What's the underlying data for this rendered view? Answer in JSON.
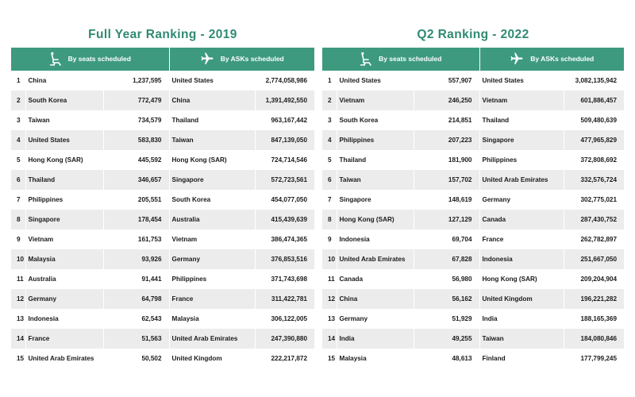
{
  "left": {
    "title": "Full Year Ranking - 2019",
    "header_seats": "By seats scheduled",
    "header_asks": "By ASKs scheduled",
    "rows": [
      {
        "rank": "1",
        "seat_country": "China",
        "seats": "1,237,595",
        "ask_country": "United States",
        "asks": "2,774,058,986"
      },
      {
        "rank": "2",
        "seat_country": "South Korea",
        "seats": "772,479",
        "ask_country": "China",
        "asks": "1,391,492,550"
      },
      {
        "rank": "3",
        "seat_country": "Taiwan",
        "seats": "734,579",
        "ask_country": "Thailand",
        "asks": "963,167,442"
      },
      {
        "rank": "4",
        "seat_country": "United States",
        "seats": "583,830",
        "ask_country": "Taiwan",
        "asks": "847,139,050"
      },
      {
        "rank": "5",
        "seat_country": "Hong Kong (SAR)",
        "seats": "445,592",
        "ask_country": "Hong Kong (SAR)",
        "asks": "724,714,546"
      },
      {
        "rank": "6",
        "seat_country": "Thailand",
        "seats": "346,657",
        "ask_country": "Singapore",
        "asks": "572,723,561"
      },
      {
        "rank": "7",
        "seat_country": "Philippines",
        "seats": "205,551",
        "ask_country": "South Korea",
        "asks": "454,077,050"
      },
      {
        "rank": "8",
        "seat_country": "Singapore",
        "seats": "178,454",
        "ask_country": "Australia",
        "asks": "415,439,639"
      },
      {
        "rank": "9",
        "seat_country": "Vietnam",
        "seats": "161,753",
        "ask_country": "Vietnam",
        "asks": "386,474,365"
      },
      {
        "rank": "10",
        "seat_country": "Malaysia",
        "seats": "93,926",
        "ask_country": "Germany",
        "asks": "376,853,516"
      },
      {
        "rank": "11",
        "seat_country": "Australia",
        "seats": "91,441",
        "ask_country": "Philippines",
        "asks": "371,743,698"
      },
      {
        "rank": "12",
        "seat_country": "Germany",
        "seats": "64,798",
        "ask_country": "France",
        "asks": "311,422,781"
      },
      {
        "rank": "13",
        "seat_country": "Indonesia",
        "seats": "62,543",
        "ask_country": "Malaysia",
        "asks": "306,122,005"
      },
      {
        "rank": "14",
        "seat_country": "France",
        "seats": "51,563",
        "ask_country": "United Arab Emirates",
        "asks": "247,390,880"
      },
      {
        "rank": "15",
        "seat_country": "United Arab Emirates",
        "seats": "50,502",
        "ask_country": "United Kingdom",
        "asks": "222,217,872"
      }
    ]
  },
  "right": {
    "title": "Q2 Ranking - 2022",
    "header_seats": "By seats scheduled",
    "header_asks": "By ASKs scheduled",
    "rows": [
      {
        "rank": "1",
        "seat_country": "United States",
        "seats": "557,907",
        "ask_country": "United States",
        "asks": "3,082,135,942"
      },
      {
        "rank": "2",
        "seat_country": "Vietnam",
        "seats": "246,250",
        "ask_country": "Vietnam",
        "asks": "601,886,457"
      },
      {
        "rank": "3",
        "seat_country": "South Korea",
        "seats": "214,851",
        "ask_country": "Thailand",
        "asks": "509,480,639"
      },
      {
        "rank": "4",
        "seat_country": "Philippines",
        "seats": "207,223",
        "ask_country": "Singapore",
        "asks": "477,965,829"
      },
      {
        "rank": "5",
        "seat_country": "Thailand",
        "seats": "181,900",
        "ask_country": "Philippines",
        "asks": "372,808,692"
      },
      {
        "rank": "6",
        "seat_country": "Taiwan",
        "seats": "157,702",
        "ask_country": "United Arab Emirates",
        "asks": "332,576,724"
      },
      {
        "rank": "7",
        "seat_country": "Singapore",
        "seats": "148,619",
        "ask_country": "Germany",
        "asks": "302,775,021"
      },
      {
        "rank": "8",
        "seat_country": "Hong Kong (SAR)",
        "seats": "127,129",
        "ask_country": "Canada",
        "asks": "287,430,752"
      },
      {
        "rank": "9",
        "seat_country": "Indonesia",
        "seats": "69,704",
        "ask_country": "France",
        "asks": "262,782,897"
      },
      {
        "rank": "10",
        "seat_country": "United Arab Emirates",
        "seats": "67,828",
        "ask_country": "Indonesia",
        "asks": "251,667,050"
      },
      {
        "rank": "11",
        "seat_country": "Canada",
        "seats": "56,980",
        "ask_country": "Hong Kong (SAR)",
        "asks": "209,204,904"
      },
      {
        "rank": "12",
        "seat_country": "China",
        "seats": "56,162",
        "ask_country": "United Kingdom",
        "asks": "196,221,282"
      },
      {
        "rank": "13",
        "seat_country": "Germany",
        "seats": "51,929",
        "ask_country": "India",
        "asks": "188,165,369"
      },
      {
        "rank": "14",
        "seat_country": "India",
        "seats": "49,255",
        "ask_country": "Taiwan",
        "asks": "184,080,846"
      },
      {
        "rank": "15",
        "seat_country": "Malaysia",
        "seats": "48,613",
        "ask_country": "Finland",
        "asks": "177,799,245"
      }
    ]
  },
  "icons": {
    "seats": "airplane-seat-icon",
    "asks": "airplane-icon"
  },
  "colors": {
    "accent": "#3d9a7f",
    "title": "#2f8a73",
    "stripe": "#ececec"
  }
}
